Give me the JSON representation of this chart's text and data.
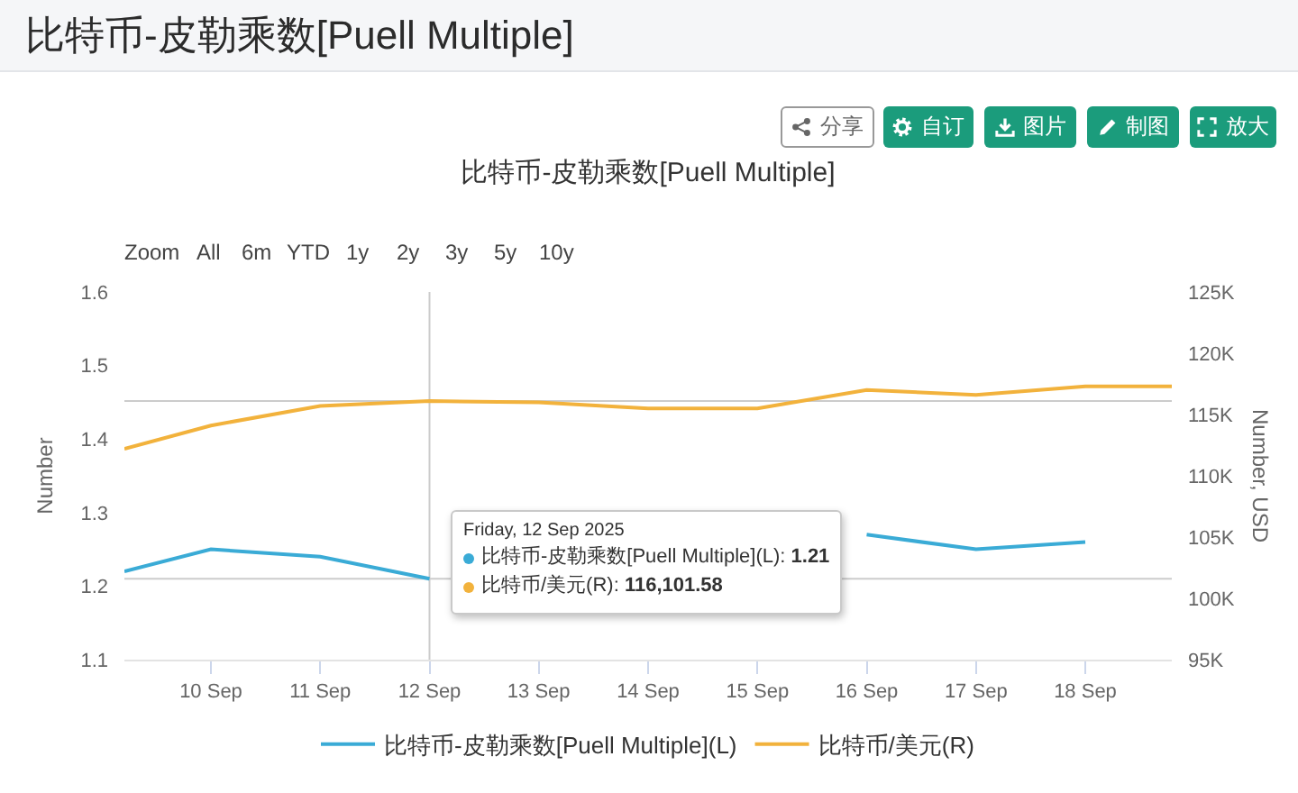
{
  "chart_data": {
    "type": "line",
    "title": "比特币-皮勒乘数[Puell Multiple]",
    "ylabel": "Number",
    "y2label": "Number, USD",
    "xlim": [
      "2025-09-09T05:00",
      "2025-09-18T19:00"
    ],
    "xticks": [
      {
        "value": "2025-09-10",
        "label": "10 Sep"
      },
      {
        "value": "2025-09-11",
        "label": "11 Sep"
      },
      {
        "value": "2025-09-12",
        "label": "12 Sep"
      },
      {
        "value": "2025-09-13",
        "label": "13 Sep"
      },
      {
        "value": "2025-09-14",
        "label": "14 Sep"
      },
      {
        "value": "2025-09-15",
        "label": "15 Sep"
      },
      {
        "value": "2025-09-16",
        "label": "16 Sep"
      },
      {
        "value": "2025-09-17",
        "label": "17 Sep"
      },
      {
        "value": "2025-09-18",
        "label": "18 Sep"
      }
    ],
    "ylim": [
      1.1,
      1.6
    ],
    "yticks": [
      1.1,
      1.2,
      1.3,
      1.4,
      1.5,
      1.6
    ],
    "y2lim": [
      95000,
      125000
    ],
    "y2ticks": [
      {
        "value": 95000,
        "label": "95K"
      },
      {
        "value": 100000,
        "label": "100K"
      },
      {
        "value": 105000,
        "label": "105K"
      },
      {
        "value": 110000,
        "label": "110K"
      },
      {
        "value": 115000,
        "label": "115K"
      },
      {
        "value": 120000,
        "label": "120K"
      },
      {
        "value": 125000,
        "label": "125K"
      }
    ],
    "series": [
      {
        "name": "比特币-皮勒乘数[Puell Multiple](L)",
        "color": "#3aabd6",
        "x": [
          "2025-09-09T05:00",
          "2025-09-10",
          "2025-09-11",
          "2025-09-12",
          "2025-09-13",
          "2025-09-14",
          "2025-09-15",
          "2025-09-16",
          "2025-09-17",
          "2025-09-18"
        ],
        "values": [
          1.22,
          1.25,
          1.24,
          1.21,
          null,
          null,
          null,
          1.27,
          1.25,
          1.26
        ]
      },
      {
        "name": "比特币/美元(R)",
        "color": "#f2b23c",
        "axis": "y2",
        "x": [
          "2025-09-09T05:00",
          "2025-09-10",
          "2025-09-11",
          "2025-09-12",
          "2025-09-13",
          "2025-09-14",
          "2025-09-15",
          "2025-09-16",
          "2025-09-17",
          "2025-09-18",
          "2025-09-18T19:00"
        ],
        "values": [
          112200,
          114100,
          115700,
          116101.58,
          116000,
          115500,
          115500,
          117000,
          116600,
          117300,
          117300
        ]
      }
    ],
    "ref_lines": [
      {
        "axis": "x",
        "value": "2025-09-12",
        "color": "#cccccc"
      },
      {
        "axis": "y",
        "value": 1.21,
        "color": "#cccccc"
      },
      {
        "axis": "y2",
        "value": 116101.58,
        "color": "#cccccc"
      }
    ],
    "legend": "bottom",
    "annotations": [
      "比特币-皮勒乘数[Puell Multiple]",
      "分享",
      "自订",
      "图片",
      "制图",
      "放大",
      "Zoom",
      "All",
      "6m",
      "YTD",
      "1y",
      "2y",
      "3y",
      "5y",
      "10y",
      "Friday, 12 Sep 2025",
      "比特币-皮勒乘数[Puell Multiple](L): 1.21",
      "比特币/美元(R): 116,101.58"
    ]
  }
}
